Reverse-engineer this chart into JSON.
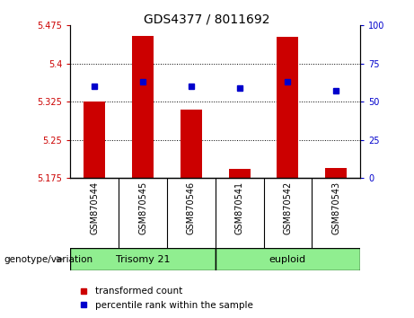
{
  "title": "GDS4377 / 8011692",
  "samples": [
    "GSM870544",
    "GSM870545",
    "GSM870546",
    "GSM870541",
    "GSM870542",
    "GSM870543"
  ],
  "red_values": [
    5.325,
    5.455,
    5.31,
    5.193,
    5.452,
    5.195
  ],
  "blue_values": [
    60,
    63,
    60,
    59,
    63,
    57
  ],
  "ylim_left": [
    5.175,
    5.475
  ],
  "ylim_right": [
    0,
    100
  ],
  "yticks_left": [
    5.175,
    5.25,
    5.325,
    5.4,
    5.475
  ],
  "yticks_right": [
    0,
    25,
    50,
    75,
    100
  ],
  "ytick_labels_left": [
    "5.175",
    "5.25",
    "5.325",
    "5.4",
    "5.475"
  ],
  "ytick_labels_right": [
    "0",
    "25",
    "50",
    "75",
    "100"
  ],
  "bar_color": "#cc0000",
  "dot_color": "#0000cc",
  "bar_bottom": 5.175,
  "legend_red_label": "transformed count",
  "legend_blue_label": "percentile rank within the sample",
  "genotype_label": "genotype/variation",
  "group1_label": "Trisomy 21",
  "group2_label": "euploid",
  "group_color": "#90ee90",
  "samplelabel_bg": "#c8c8c8",
  "trisomy_count": 3,
  "euploid_count": 3
}
